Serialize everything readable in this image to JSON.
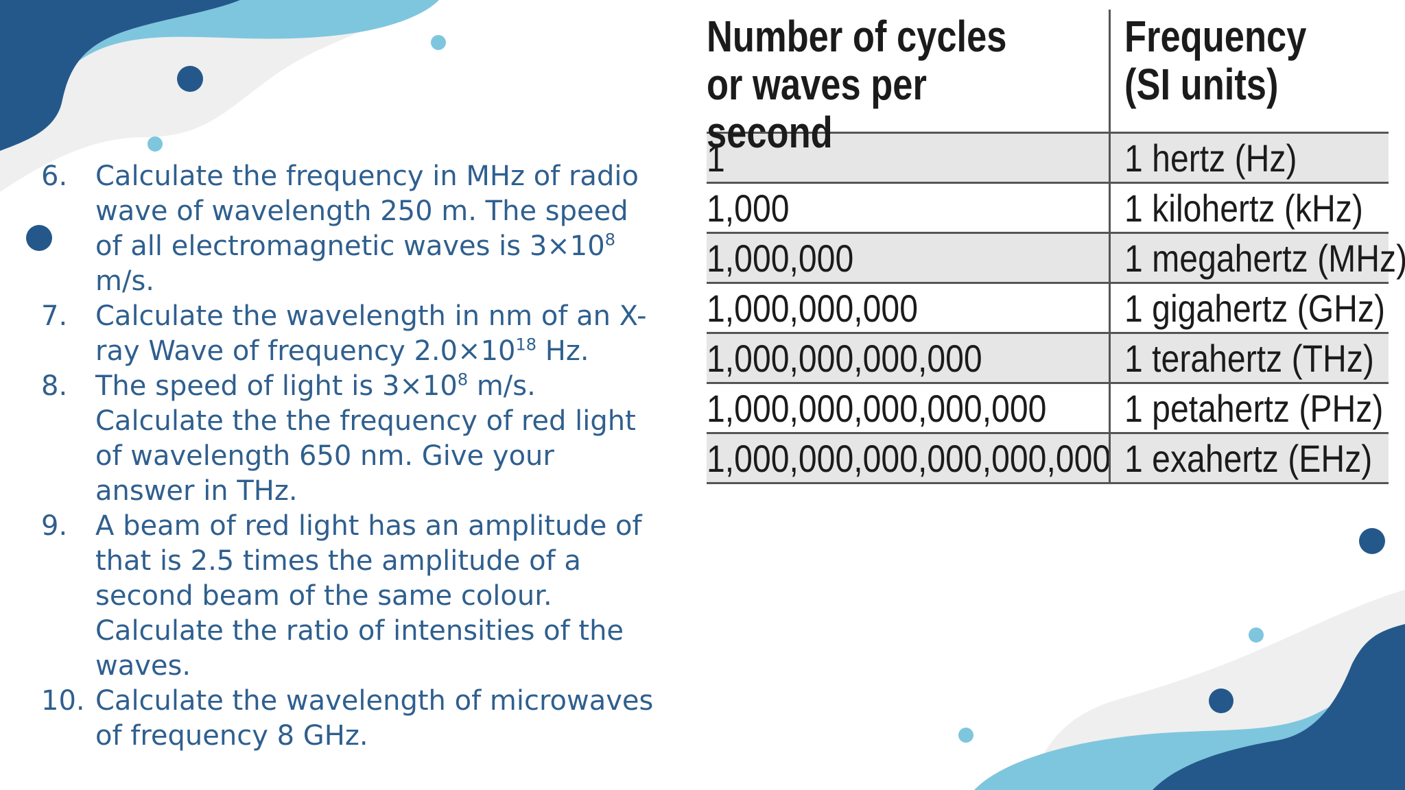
{
  "questions": [
    {
      "num": "6.",
      "parts": [
        "Calculate the frequency in MHz of radio wave of wavelength 250 m. The speed of all electromagnetic waves is 3×10",
        "8",
        " m/s."
      ]
    },
    {
      "num": "7.",
      "parts": [
        "Calculate the wavelength in nm of an X-ray Wave of frequency 2.0×10",
        "18",
        " Hz."
      ]
    },
    {
      "num": "8.",
      "parts": [
        "The speed of light is 3×10",
        "8",
        " m/s. Calculate the the frequency of red light of wavelength 650 nm. Give your answer in THz."
      ]
    },
    {
      "num": "9.",
      "parts": [
        "A beam of red light has an amplitude of that is 2.5 times the amplitude of a second beam of the same colour. Calculate the ratio of intensities of the waves."
      ]
    },
    {
      "num": "10.",
      "parts": [
        "Calculate the wavelength of microwaves of frequency 8 GHz."
      ]
    }
  ],
  "table": {
    "headers": [
      "Number of cycles or waves per second",
      "Frequency (SI units)"
    ],
    "rows": [
      [
        "1",
        "1 hertz (Hz)"
      ],
      [
        "1,000",
        "1 kilohertz (kHz)"
      ],
      [
        "1,000,000",
        "1 megahertz (MHz)"
      ],
      [
        "1,000,000,000",
        "1 gigahertz (GHz)"
      ],
      [
        "1,000,000,000,000",
        "1 terahertz (THz)"
      ],
      [
        "1,000,000,000,000,000",
        "1 petahertz (PHz)"
      ],
      [
        "1,000,000,000,000,000,000",
        "1 exahertz (EHz)"
      ]
    ]
  },
  "theme": {
    "dark_blue": "#24588a",
    "light_blue": "#7ec6de",
    "pale_gray": "#efefef",
    "text_blue": "#2f5f8e"
  }
}
